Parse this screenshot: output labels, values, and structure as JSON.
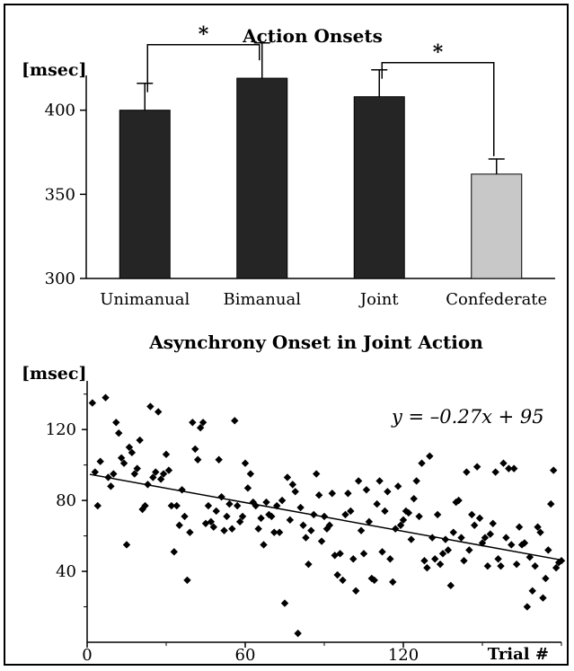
{
  "chart_data": [
    {
      "type": "bar",
      "title": "Action Onsets",
      "ylabel": "[msec]",
      "ylim": [
        300,
        450
      ],
      "yticks": [
        300,
        350,
        400
      ],
      "categories": [
        "Unimanual",
        "Bimanual",
        "Joint",
        "Confederate"
      ],
      "values": [
        400,
        419,
        408,
        362
      ],
      "errors": [
        16,
        21,
        16,
        9
      ],
      "colors": [
        "#252525",
        "#252525",
        "#252525",
        "#c8c8c8"
      ],
      "significance": [
        {
          "pair": [
            0,
            1
          ],
          "label": "*"
        },
        {
          "pair": [
            2,
            3
          ],
          "label": "*"
        }
      ],
      "grid": false
    },
    {
      "type": "scatter",
      "title": "Asynchrony Onset in Joint Action",
      "ylabel": "[msec]",
      "xlabel": "Trial #",
      "xlim": [
        0,
        180
      ],
      "ylim": [
        0,
        150
      ],
      "xticks": [
        0,
        60,
        120
      ],
      "yticks": [
        40,
        80,
        120
      ],
      "grid": false,
      "regression": {
        "label": "y = –0.27x + 95",
        "slope": -0.27,
        "intercept": 95
      },
      "points": [
        [
          2,
          135
        ],
        [
          3,
          96
        ],
        [
          4,
          77
        ],
        [
          5,
          102
        ],
        [
          7,
          138
        ],
        [
          8,
          93
        ],
        [
          9,
          88
        ],
        [
          10,
          95
        ],
        [
          11,
          124
        ],
        [
          12,
          118
        ],
        [
          13,
          104
        ],
        [
          14,
          101
        ],
        [
          15,
          55
        ],
        [
          16,
          110
        ],
        [
          17,
          107
        ],
        [
          18,
          95
        ],
        [
          19,
          98
        ],
        [
          20,
          114
        ],
        [
          21,
          75
        ],
        [
          22,
          77
        ],
        [
          23,
          89
        ],
        [
          24,
          133
        ],
        [
          25,
          93
        ],
        [
          26,
          96
        ],
        [
          27,
          130
        ],
        [
          28,
          92
        ],
        [
          29,
          95
        ],
        [
          30,
          106
        ],
        [
          31,
          97
        ],
        [
          32,
          77
        ],
        [
          33,
          51
        ],
        [
          34,
          77
        ],
        [
          35,
          66
        ],
        [
          36,
          86
        ],
        [
          37,
          71
        ],
        [
          38,
          35
        ],
        [
          39,
          62
        ],
        [
          40,
          124
        ],
        [
          41,
          109
        ],
        [
          42,
          103
        ],
        [
          43,
          121
        ],
        [
          44,
          124
        ],
        [
          45,
          67
        ],
        [
          46,
          77
        ],
        [
          47,
          68
        ],
        [
          48,
          65
        ],
        [
          49,
          74
        ],
        [
          50,
          103
        ],
        [
          51,
          82
        ],
        [
          52,
          63
        ],
        [
          53,
          71
        ],
        [
          54,
          78
        ],
        [
          55,
          64
        ],
        [
          56,
          125
        ],
        [
          57,
          77
        ],
        [
          58,
          68
        ],
        [
          59,
          71
        ],
        [
          60,
          101
        ],
        [
          61,
          87
        ],
        [
          62,
          95
        ],
        [
          63,
          79
        ],
        [
          64,
          77
        ],
        [
          65,
          64
        ],
        [
          66,
          70
        ],
        [
          67,
          55
        ],
        [
          68,
          79
        ],
        [
          69,
          72
        ],
        [
          70,
          71
        ],
        [
          71,
          62
        ],
        [
          72,
          77
        ],
        [
          73,
          62
        ],
        [
          74,
          80
        ],
        [
          75,
          22
        ],
        [
          76,
          93
        ],
        [
          77,
          69
        ],
        [
          78,
          89
        ],
        [
          79,
          85
        ],
        [
          80,
          5
        ],
        [
          81,
          76
        ],
        [
          82,
          66
        ],
        [
          83,
          59
        ],
        [
          84,
          44
        ],
        [
          85,
          63
        ],
        [
          86,
          72
        ],
        [
          87,
          95
        ],
        [
          88,
          83
        ],
        [
          89,
          57
        ],
        [
          90,
          71
        ],
        [
          91,
          64
        ],
        [
          92,
          66
        ],
        [
          93,
          84
        ],
        [
          94,
          49
        ],
        [
          95,
          38
        ],
        [
          96,
          50
        ],
        [
          97,
          35
        ],
        [
          98,
          72
        ],
        [
          99,
          84
        ],
        [
          100,
          74
        ],
        [
          101,
          47
        ],
        [
          102,
          29
        ],
        [
          103,
          91
        ],
        [
          104,
          63
        ],
        [
          105,
          50
        ],
        [
          106,
          86
        ],
        [
          107,
          68
        ],
        [
          108,
          36
        ],
        [
          109,
          35
        ],
        [
          110,
          78
        ],
        [
          111,
          91
        ],
        [
          112,
          51
        ],
        [
          113,
          74
        ],
        [
          114,
          85
        ],
        [
          115,
          47
        ],
        [
          116,
          34
        ],
        [
          117,
          64
        ],
        [
          118,
          88
        ],
        [
          119,
          66
        ],
        [
          120,
          69
        ],
        [
          121,
          74
        ],
        [
          122,
          73
        ],
        [
          123,
          58
        ],
        [
          124,
          81
        ],
        [
          125,
          91
        ],
        [
          126,
          71
        ],
        [
          127,
          101
        ],
        [
          128,
          46
        ],
        [
          129,
          42
        ],
        [
          130,
          105
        ],
        [
          131,
          59
        ],
        [
          132,
          47
        ],
        [
          133,
          72
        ],
        [
          134,
          44
        ],
        [
          135,
          50
        ],
        [
          136,
          58
        ],
        [
          137,
          52
        ],
        [
          138,
          32
        ],
        [
          139,
          62
        ],
        [
          140,
          79
        ],
        [
          141,
          80
        ],
        [
          142,
          59
        ],
        [
          143,
          46
        ],
        [
          144,
          96
        ],
        [
          145,
          52
        ],
        [
          146,
          72
        ],
        [
          147,
          66
        ],
        [
          148,
          99
        ],
        [
          149,
          70
        ],
        [
          150,
          56
        ],
        [
          151,
          59
        ],
        [
          152,
          43
        ],
        [
          153,
          61
        ],
        [
          154,
          67
        ],
        [
          155,
          96
        ],
        [
          156,
          47
        ],
        [
          157,
          43
        ],
        [
          158,
          101
        ],
        [
          159,
          59
        ],
        [
          160,
          98
        ],
        [
          161,
          55
        ],
        [
          162,
          98
        ],
        [
          163,
          44
        ],
        [
          164,
          65
        ],
        [
          165,
          55
        ],
        [
          166,
          56
        ],
        [
          167,
          20
        ],
        [
          168,
          48
        ],
        [
          169,
          29
        ],
        [
          170,
          43
        ],
        [
          171,
          65
        ],
        [
          172,
          62
        ],
        [
          173,
          25
        ],
        [
          174,
          36
        ],
        [
          175,
          52
        ],
        [
          176,
          78
        ],
        [
          177,
          97
        ],
        [
          178,
          42
        ],
        [
          179,
          45
        ],
        [
          180,
          46
        ]
      ]
    }
  ]
}
